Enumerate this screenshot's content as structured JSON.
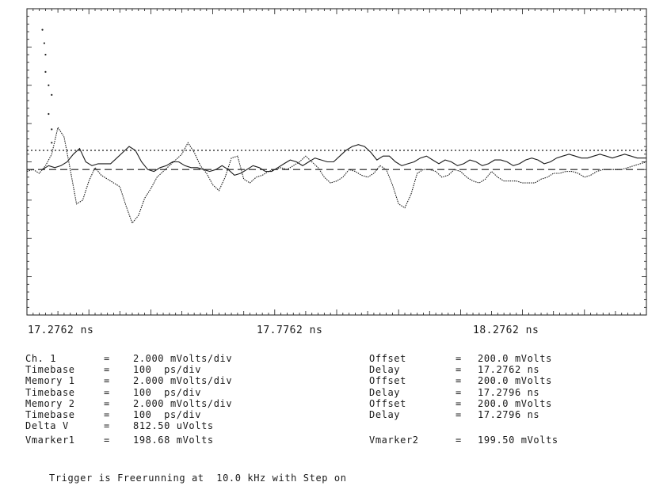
{
  "chart_data": {
    "type": "line",
    "title": "",
    "xlabel": "",
    "ylabel": "",
    "x_unit": "ns",
    "x_range": [
      17.2762,
      18.2762
    ],
    "x_ticks": [
      "17.2762 ns",
      "17.7762 ns",
      "18.2762 ns"
    ],
    "y_unit": "mV",
    "y_range": [
      192.0,
      208.0
    ],
    "grid": false,
    "series": [
      {
        "color": "#1a1a1a",
        "x": [
          17.2762,
          17.2862,
          17.2962,
          17.3062,
          17.3162,
          17.3262,
          17.3362,
          17.3462,
          17.3562,
          17.3662,
          17.3762,
          17.3862,
          17.3962,
          17.4062,
          17.4162,
          17.4262,
          17.4362,
          17.4462,
          17.4562,
          17.4662,
          17.4762,
          17.4862,
          17.4962,
          17.5062,
          17.5162,
          17.5262,
          17.5362,
          17.5462,
          17.5562,
          17.5662,
          17.5762,
          17.5862,
          17.5962,
          17.6062,
          17.6162,
          17.6262,
          17.6362,
          17.6462,
          17.6562,
          17.6662,
          17.6762,
          17.6862,
          17.6962,
          17.7062,
          17.7162,
          17.7262,
          17.7362,
          17.7462,
          17.7562,
          17.7662,
          17.7762,
          17.7862,
          17.7962,
          17.8062,
          17.8162,
          17.8262,
          17.8362,
          17.8462,
          17.8562,
          17.8662,
          17.8762,
          17.8862,
          17.8962,
          17.9062,
          17.9162,
          17.9262,
          17.9362,
          17.9462,
          17.9562,
          17.9662,
          17.9762,
          17.9862,
          17.9962,
          18.0062,
          18.0162,
          18.0262,
          18.0362,
          18.0462,
          18.0562,
          18.0662,
          18.0762,
          18.0862,
          18.0962,
          18.1062,
          18.1162,
          18.1262,
          18.1362,
          18.1462,
          18.1562,
          18.1662,
          18.1762,
          18.1862,
          18.1962,
          18.2062,
          18.2162,
          18.2262,
          18.2362,
          18.2462,
          18.2562,
          18.2662,
          18.2762
        ],
        "y": [
          199.5,
          199.6,
          199.4,
          199.8,
          200.4,
          201.8,
          201.3,
          199.6,
          197.8,
          198.0,
          199.0,
          199.7,
          199.3,
          199.1,
          198.9,
          198.7,
          197.7,
          196.8,
          197.2,
          198.1,
          198.6,
          199.2,
          199.5,
          199.8,
          200.1,
          200.4,
          201.0,
          200.5,
          199.8,
          199.4,
          198.8,
          198.5,
          199.2,
          200.2,
          200.3,
          199.1,
          198.9,
          199.2,
          199.3,
          199.5,
          199.6,
          199.7,
          199.6,
          199.8,
          200.0,
          200.3,
          200.0,
          199.7,
          199.2,
          198.9,
          199.0,
          199.2,
          199.6,
          199.5,
          199.3,
          199.2,
          199.4,
          199.8,
          199.6,
          198.8,
          197.8,
          197.6,
          198.3,
          199.4,
          199.6,
          199.6,
          199.5,
          199.2,
          199.3,
          199.6,
          199.5,
          199.2,
          199.0,
          198.9,
          199.1,
          199.5,
          199.2,
          199.0,
          199.0,
          199.0,
          198.9,
          198.9,
          198.9,
          199.1,
          199.2,
          199.4,
          199.4,
          199.5,
          199.5,
          199.4,
          199.2,
          199.3,
          199.5,
          199.6,
          199.6,
          199.6,
          199.6,
          199.7,
          199.8,
          199.9,
          200.0
        ]
      },
      {
        "color": "#1a1a1a",
        "x": [
          17.3012,
          17.3112,
          17.3212,
          17.3312,
          17.3412,
          17.3512,
          17.3612,
          17.3712,
          17.3812,
          17.3912,
          17.4012,
          17.4112,
          17.4212,
          17.4312,
          17.4412,
          17.4512,
          17.4612,
          17.4712,
          17.4812,
          17.4912,
          17.5012,
          17.5112,
          17.5212,
          17.5312,
          17.5412,
          17.5512,
          17.5612,
          17.5712,
          17.5812,
          17.5912,
          17.6012,
          17.6112,
          17.6212,
          17.6312,
          17.6412,
          17.6512,
          17.6612,
          17.6712,
          17.6812,
          17.6912,
          17.7012,
          17.7112,
          17.7212,
          17.7312,
          17.7412,
          17.7512,
          17.7612,
          17.7712,
          17.7812,
          17.7912,
          17.8012,
          17.8112,
          17.8212,
          17.8312,
          17.8412,
          17.8512,
          17.8612,
          17.8712,
          17.8812,
          17.8912,
          17.9012,
          17.9112,
          17.9212,
          17.9312,
          17.9412,
          17.9512,
          17.9612,
          17.9712,
          17.9812,
          17.9912,
          18.0012,
          18.0112,
          18.0212,
          18.0312,
          18.0412,
          18.0512,
          18.0612,
          18.0712,
          18.0812,
          18.0912,
          18.1012,
          18.1112,
          18.1212,
          18.1312,
          18.1412,
          18.1512,
          18.1612,
          18.1712,
          18.1812,
          18.1912,
          18.2012,
          18.2112,
          18.2212,
          18.2312,
          18.2412,
          18.2512,
          18.2612,
          18.2762
        ],
        "y": [
          199.6,
          199.8,
          199.7,
          199.8,
          200.0,
          200.4,
          200.7,
          200.0,
          199.8,
          199.9,
          199.9,
          199.9,
          200.2,
          200.5,
          200.8,
          200.6,
          200.0,
          199.6,
          199.5,
          199.7,
          199.8,
          200.0,
          200.0,
          199.8,
          199.7,
          199.7,
          199.6,
          199.5,
          199.6,
          199.8,
          199.6,
          199.3,
          199.4,
          199.6,
          199.8,
          199.7,
          199.5,
          199.5,
          199.7,
          199.9,
          200.1,
          200.0,
          199.8,
          200.0,
          200.2,
          200.1,
          200.0,
          200.0,
          200.3,
          200.6,
          200.8,
          200.9,
          200.8,
          200.5,
          200.1,
          200.3,
          200.3,
          200.0,
          199.8,
          199.9,
          200.0,
          200.2,
          200.3,
          200.1,
          199.9,
          200.1,
          200.0,
          199.8,
          199.9,
          200.1,
          200.0,
          199.8,
          199.9,
          200.1,
          200.1,
          200.0,
          199.8,
          199.9,
          200.1,
          200.2,
          200.1,
          199.9,
          200.0,
          200.2,
          200.3,
          200.4,
          200.3,
          200.2,
          200.2,
          200.3,
          200.4,
          200.3,
          200.2,
          200.3,
          200.4,
          200.3,
          200.2,
          200.2
        ]
      }
    ],
    "reference_lines": [
      {
        "y": 200.6,
        "style": "dotted"
      },
      {
        "y": 199.6,
        "style": "dashed"
      }
    ],
    "early_points": {
      "x": [
        17.3012,
        17.3042,
        17.3062,
        17.3062,
        17.3112,
        17.3162,
        17.3112,
        17.3162,
        17.3162
      ],
      "y": [
        206.9,
        206.2,
        205.6,
        204.7,
        204.0,
        203.5,
        202.5,
        201.7,
        201.0
      ]
    }
  },
  "settings": {
    "rows": [
      {
        "label": "Ch. 1",
        "eq": "=",
        "value": "2.000 mVolts/div",
        "label2": "Offset",
        "eq2": "=",
        "value2": "200.0 mVolts"
      },
      {
        "label": "Timebase",
        "eq": "=",
        "value": "100  ps/div",
        "label2": "Delay",
        "eq2": "=",
        "value2": "17.2762 ns"
      },
      {
        "label": "Memory 1",
        "eq": "=",
        "value": "2.000 mVolts/div",
        "label2": "Offset",
        "eq2": "=",
        "value2": "200.0 mVolts"
      },
      {
        "label": "Timebase",
        "eq": "=",
        "value": "100  ps/div",
        "label2": "Delay",
        "eq2": "=",
        "value2": "17.2796 ns"
      },
      {
        "label": "Memory 2",
        "eq": "=",
        "value": "2.000 mVolts/div",
        "label2": "Offset",
        "eq2": "=",
        "value2": "200.0 mVolts"
      },
      {
        "label": "Timebase",
        "eq": "=",
        "value": "100  ps/div",
        "label2": "Delay",
        "eq2": "=",
        "value2": "17.2796 ns"
      },
      {
        "label": "Delta V",
        "eq": "=",
        "value": "812.50 uVolts",
        "label2": "",
        "eq2": "",
        "value2": ""
      },
      {
        "label": "Vmarker1",
        "eq": "=",
        "value": "198.68 mVolts",
        "label2": "Vmarker2",
        "eq2": "=",
        "value2": "199.50 mVolts"
      }
    ],
    "footer": "Trigger is Freerunning at  10.0 kHz with Step on"
  }
}
